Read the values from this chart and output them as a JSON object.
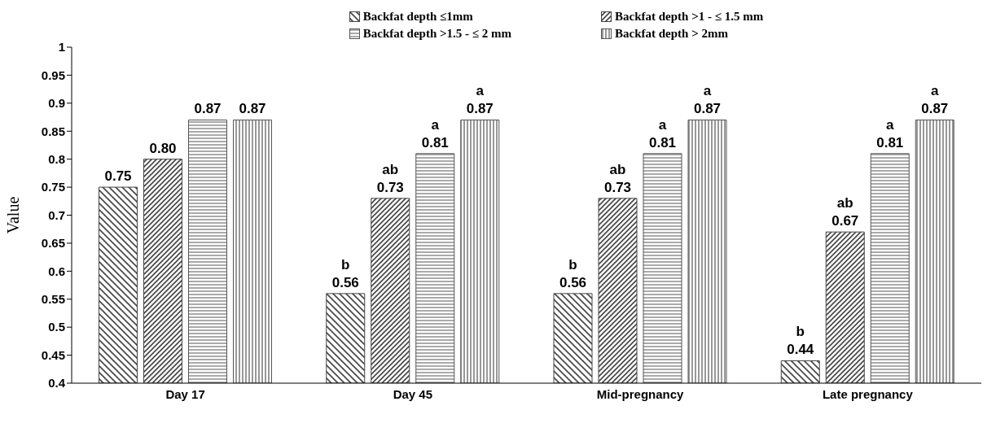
{
  "chart_data": {
    "type": "bar",
    "ylabel": "Value",
    "categories": [
      "Day 17",
      "Day 45",
      "Mid-pregnancy",
      "Late pregnancy"
    ],
    "series": [
      {
        "name": "Backfat depth ≤1mm",
        "color": "#444444",
        "values": [
          0.75,
          0.56,
          0.56,
          0.44
        ],
        "value_labels": [
          "0.75",
          "0.56",
          "0.56",
          "0.44"
        ]
      },
      {
        "name": "Backfat depth >1 - ≤ 1.5 mm",
        "color": "#444444",
        "values": [
          0.8,
          0.73,
          0.73,
          0.67
        ],
        "value_labels": [
          "0.80",
          "0.73",
          "0.73",
          "0.67"
        ]
      },
      {
        "name": "Backfat depth >1.5 - ≤ 2 mm",
        "color": "#555555",
        "values": [
          0.87,
          0.81,
          0.81,
          0.81
        ],
        "value_labels": [
          "0.87",
          "0.81",
          "0.81",
          "0.81"
        ]
      },
      {
        "name": "Backfat depth >  2mm",
        "color": "#555555",
        "values": [
          0.87,
          0.87,
          0.87,
          0.87
        ],
        "value_labels": [
          "0.87",
          "0.87",
          "0.87",
          "0.87"
        ]
      }
    ],
    "annotations": [
      "b",
      "ab",
      "a",
      "a",
      "b",
      "ab",
      "a",
      "a",
      "b",
      "ab",
      "a",
      "a"
    ],
    "ylim": [
      0.4,
      1
    ],
    "yticks": [
      0.4,
      0.45,
      0.5,
      0.55,
      0.6,
      0.65,
      0.7,
      0.75,
      0.8,
      0.85,
      0.9,
      0.95,
      1
    ],
    "grid": false,
    "legend": "top"
  }
}
